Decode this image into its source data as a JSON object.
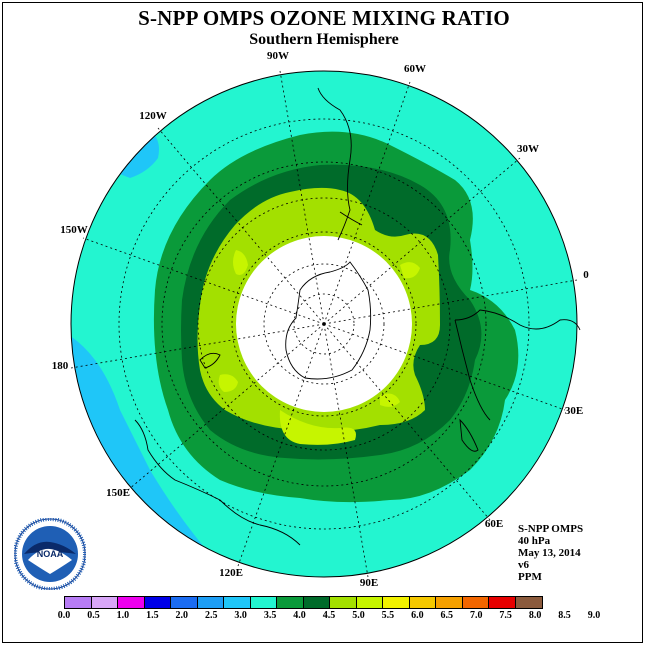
{
  "header": {
    "title": "S-NPP OMPS OZONE MIXING RATIO",
    "subtitle": "Southern Hemisphere"
  },
  "map": {
    "projection": "polar stereographic, south pole",
    "longitude_labels": [
      "90W",
      "60W",
      "30W",
      "0",
      "30E",
      "60E",
      "90E",
      "120E",
      "150E",
      "180",
      "150W",
      "120W"
    ],
    "fill_colors": {
      "range_3_5_to_4_0": "#23f5d0",
      "range_3_0_to_3_5": "#1fc6f8",
      "range_4_0_to_4_5": "#0a9a3a",
      "range_4_5_to_5_0": "#006b2a",
      "range_5_0_to_5_5": "#a3e000",
      "range_5_5_to_6_0": "#c6f500",
      "no_data_polar_cap": "#ffffff"
    }
  },
  "info": {
    "instrument": "S-NPP OMPS",
    "level": "40 hPa",
    "date": "May 13, 2014",
    "version": "v6",
    "units": "PPM"
  },
  "logo": {
    "name": "NOAA"
  },
  "colorbar": {
    "colors": [
      "#b77cf5",
      "#d8a6f8",
      "#ee00ee",
      "#0000e8",
      "#1b6cf2",
      "#1d9ef5",
      "#1fc6f8",
      "#23f5d0",
      "#0a9a3a",
      "#006b2a",
      "#a3e000",
      "#c6f500",
      "#f2f200",
      "#f5c800",
      "#f5a000",
      "#f26600",
      "#e60000",
      "#8b5a3c"
    ],
    "tick_labels": [
      "0.0",
      "0.5",
      "1.0",
      "1.5",
      "2.0",
      "2.5",
      "3.0",
      "3.5",
      "4.0",
      "4.5",
      "5.0",
      "5.5",
      "6.0",
      "6.5",
      "7.0",
      "7.5",
      "8.0",
      "8.5",
      "9.0"
    ]
  }
}
